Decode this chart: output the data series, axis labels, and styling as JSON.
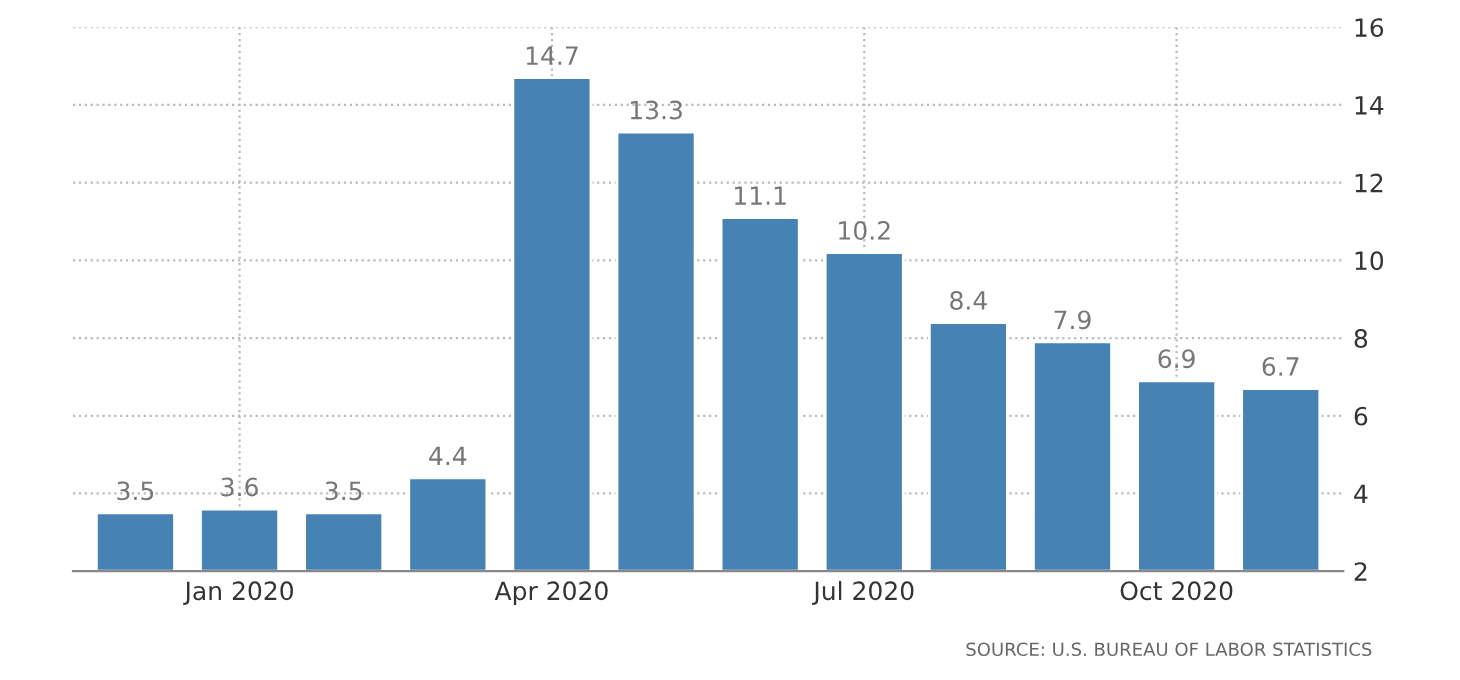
{
  "chart_data": {
    "type": "bar",
    "categories": [
      null,
      "Jan 2020",
      null,
      null,
      "Apr 2020",
      null,
      null,
      "Jul 2020",
      null,
      null,
      "Oct 2020",
      null
    ],
    "values": [
      3.5,
      3.6,
      3.5,
      4.4,
      14.7,
      13.3,
      11.1,
      10.2,
      8.4,
      7.9,
      6.9,
      6.7
    ],
    "color": "#4682b4",
    "ylim": [
      2,
      16
    ],
    "yticks": [
      2,
      4,
      6,
      8,
      10,
      12,
      14,
      16
    ],
    "grid": true,
    "data_labels": true,
    "annotations": [
      "SOURCE: U.S. BUREAU OF LABOR STATISTICS"
    ]
  }
}
